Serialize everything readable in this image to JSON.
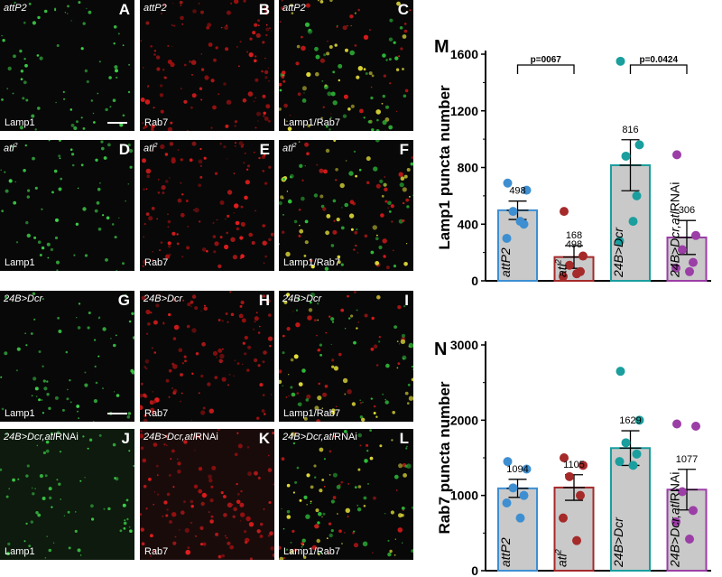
{
  "panels": [
    {
      "id": "A",
      "genotype": "attP2",
      "genotype_sup": "",
      "genotype_suffix": "",
      "channel": "Lamp1",
      "type": "green",
      "scale_bar": true
    },
    {
      "id": "B",
      "genotype": "attP2",
      "genotype_sup": "",
      "genotype_suffix": "",
      "channel": "Rab7",
      "type": "red",
      "scale_bar": false
    },
    {
      "id": "C",
      "genotype": "attP2",
      "genotype_sup": "",
      "genotype_suffix": "",
      "channel": "Lamp1/Rab7",
      "type": "merge",
      "scale_bar": false
    },
    {
      "id": "D",
      "genotype": "atl",
      "genotype_sup": "2",
      "genotype_suffix": "",
      "channel": "Lamp1",
      "type": "green",
      "scale_bar": false
    },
    {
      "id": "E",
      "genotype": "atl",
      "genotype_sup": "2",
      "genotype_suffix": "",
      "channel": "Rab7",
      "type": "red",
      "scale_bar": false
    },
    {
      "id": "F",
      "genotype": "atl",
      "genotype_sup": "2",
      "genotype_suffix": "",
      "channel": "Lamp1/Rab7",
      "type": "merge",
      "scale_bar": false
    },
    {
      "id": "G",
      "genotype": "24B>Dcr",
      "genotype_sup": "",
      "genotype_suffix": "",
      "channel": "Lamp1",
      "type": "green",
      "scale_bar": true
    },
    {
      "id": "H",
      "genotype": "24B>Dcr",
      "genotype_sup": "",
      "genotype_suffix": "",
      "channel": "Rab7",
      "type": "red",
      "scale_bar": false
    },
    {
      "id": "I",
      "genotype": "24B>Dcr",
      "genotype_sup": "",
      "genotype_suffix": "",
      "channel": "Lamp1/Rab7",
      "type": "merge",
      "scale_bar": false
    },
    {
      "id": "J",
      "genotype": "24B>Dcr,atl",
      "genotype_sup": "",
      "genotype_suffix": "RNAi",
      "channel": "Lamp1",
      "type": "green",
      "scale_bar": false
    },
    {
      "id": "K",
      "genotype": "24B>Dcr,atl",
      "genotype_sup": "",
      "genotype_suffix": "RNAi",
      "channel": "Rab7",
      "type": "red",
      "scale_bar": false
    },
    {
      "id": "L",
      "genotype": "24B>Dcr,atl",
      "genotype_sup": "",
      "genotype_suffix": "RNAi",
      "channel": "Lamp1/Rab7",
      "type": "merge",
      "scale_bar": false
    }
  ],
  "chart_data": [
    {
      "type": "bar",
      "panel_letter": "M",
      "ylabel": "Lamp1 puncta number",
      "ylim": [
        0,
        1600
      ],
      "yticks": [
        0,
        400,
        800,
        1200,
        1600
      ],
      "categories": [
        "attP2",
        "atl2",
        "24B>Dcr",
        "24B>Dcr,atlRNAi"
      ],
      "category_labels": [
        {
          "main": "attP2",
          "sup": "",
          "suffix": ""
        },
        {
          "main": "atl",
          "sup": "2",
          "suffix": ""
        },
        {
          "main": "24B>Dcr",
          "sup": "",
          "suffix": ""
        },
        {
          "main": "24B>Dcr,atl",
          "sup": "",
          "suffix": "RNAi"
        }
      ],
      "values": [
        498,
        168,
        816,
        306
      ],
      "value_labels": [
        "498",
        "168",
        "816",
        "306"
      ],
      "overlap_label": "498",
      "errors": [
        65,
        80,
        180,
        120
      ],
      "points": [
        [
          690,
          640,
          490,
          400,
          300,
          420
        ],
        [
          490,
          175,
          110,
          65,
          30,
          50
        ],
        [
          1550,
          960,
          880,
          600,
          280,
          420
        ],
        [
          890,
          320,
          220,
          130,
          90,
          65
        ]
      ],
      "colors": [
        "#3e8fd1",
        "#a52a2a",
        "#1a9e9e",
        "#9b3ea6"
      ],
      "comparisons": [
        {
          "from": 0,
          "to": 1,
          "label": "p=0067"
        },
        {
          "from": 2,
          "to": 3,
          "label": "p=0.0424"
        }
      ]
    },
    {
      "type": "bar",
      "panel_letter": "N",
      "ylabel": "Rab7 puncta number",
      "ylim": [
        0,
        3000
      ],
      "yticks": [
        0,
        1000,
        2000,
        3000
      ],
      "categories": [
        "attP2",
        "atl2",
        "24B>Dcr",
        "24B>Dcr,atlRNAi"
      ],
      "category_labels": [
        {
          "main": "attP2",
          "sup": "",
          "suffix": ""
        },
        {
          "main": "atl",
          "sup": "2",
          "suffix": ""
        },
        {
          "main": "24B>Dcr",
          "sup": "",
          "suffix": ""
        },
        {
          "main": "24B>Dcr,atl",
          "sup": "",
          "suffix": "RNAi"
        }
      ],
      "values": [
        1094,
        1105,
        1629,
        1077
      ],
      "value_labels": [
        "1094",
        "1105",
        "1629",
        "1077"
      ],
      "errors": [
        120,
        170,
        230,
        270
      ],
      "points": [
        [
          1450,
          1350,
          1100,
          1000,
          900,
          700
        ],
        [
          1500,
          1400,
          1250,
          1000,
          700,
          400
        ],
        [
          2650,
          2000,
          1700,
          1550,
          1450,
          1400
        ],
        [
          1950,
          1920,
          1050,
          800,
          650,
          420
        ]
      ],
      "colors": [
        "#3e8fd1",
        "#a52a2a",
        "#1a9e9e",
        "#9b3ea6"
      ],
      "comparisons": []
    }
  ]
}
